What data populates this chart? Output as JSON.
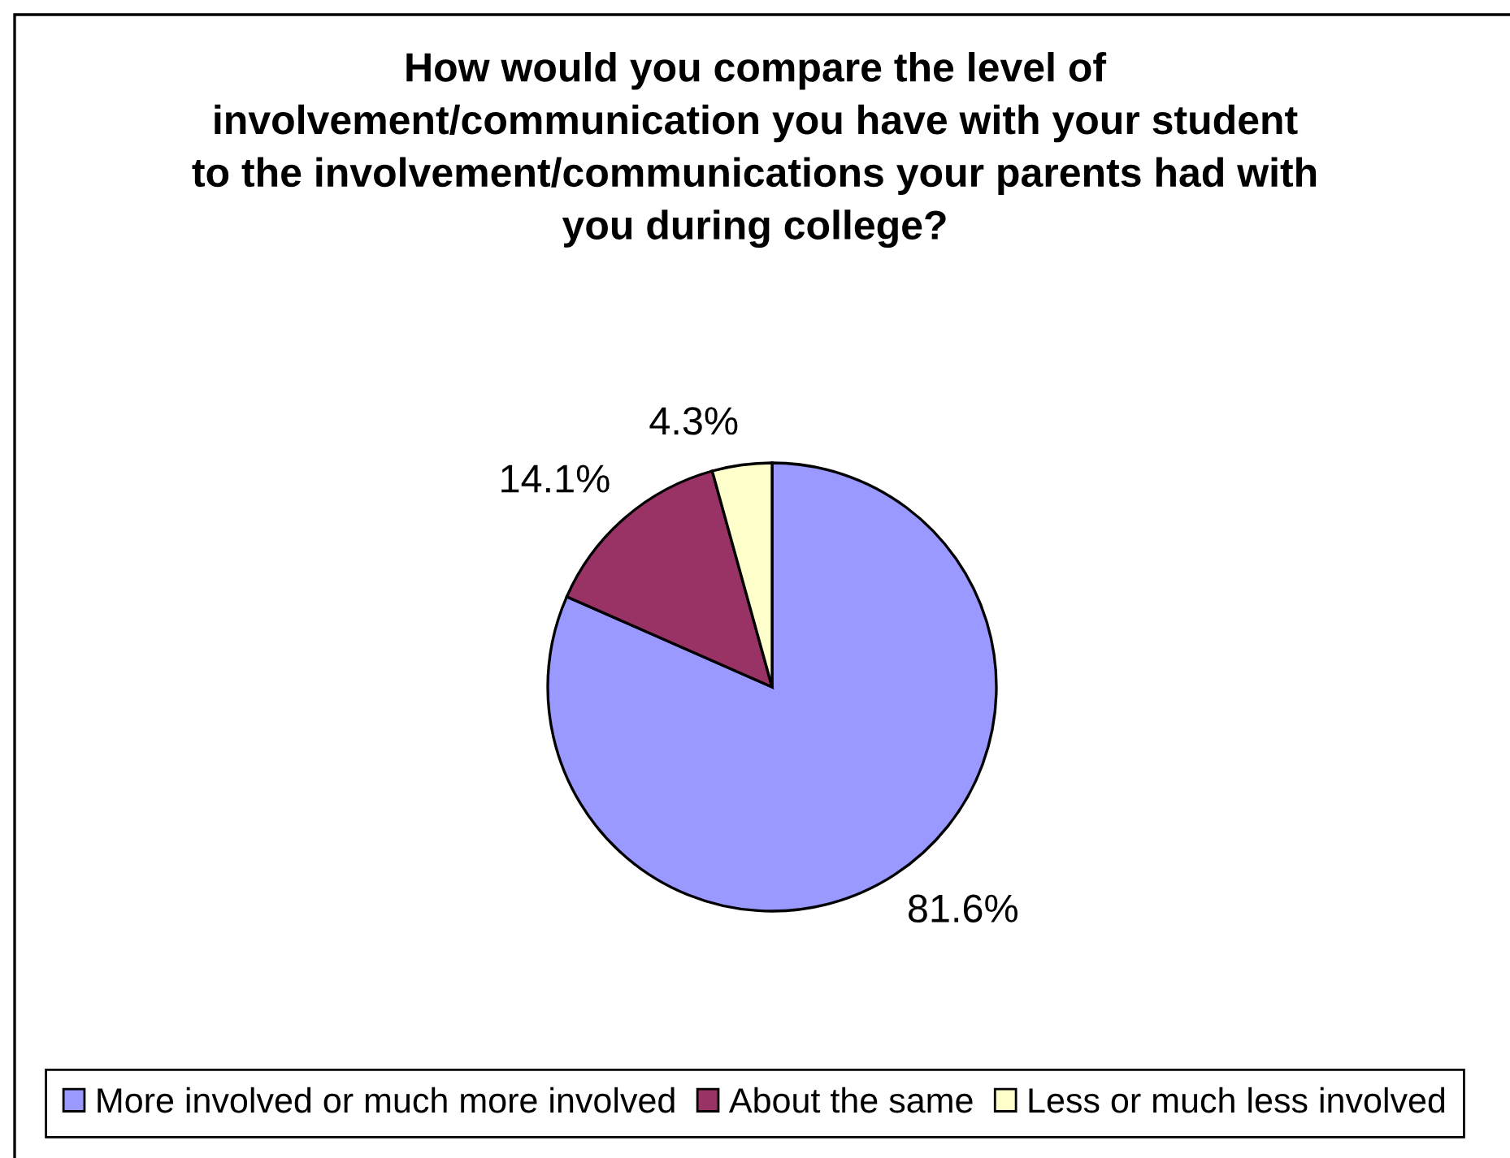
{
  "chart_data": {
    "type": "pie",
    "title": "How would you compare the level of\ninvolvement/communication you have with your student\nto the involvement/communications your parents had with\nyou during college?",
    "categories": [
      "More involved or much more involved",
      "About the same",
      "Less or much less involved"
    ],
    "values": [
      81.6,
      14.1,
      4.3
    ],
    "value_labels": [
      "81.6%",
      "14.1%",
      "4.3%"
    ],
    "colors": [
      "#9999ff",
      "#993366",
      "#ffffcc"
    ],
    "legend": "bottom"
  }
}
